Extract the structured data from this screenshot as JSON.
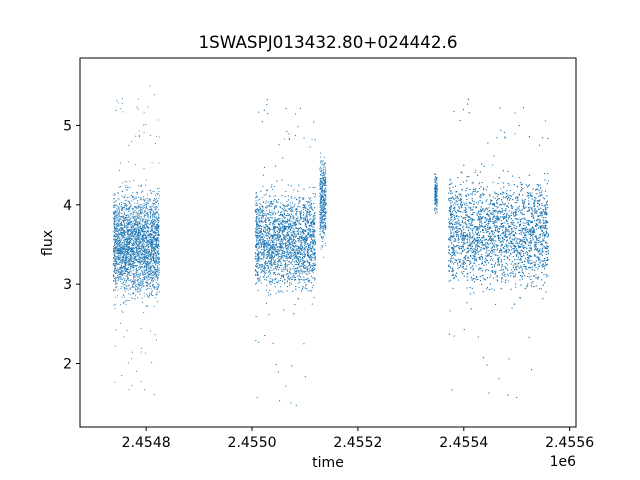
{
  "chart_data": {
    "type": "scatter",
    "title": "1SWASPJ013432.80+024442.6",
    "xlabel": "time",
    "ylabel": "flux",
    "x_offset_label": "1e6",
    "xlim": [
      2454675,
      2455612
    ],
    "ylim": [
      1.2,
      5.85
    ],
    "x_ticks": [
      2454800,
      2455000,
      2455200,
      2455400,
      2455600
    ],
    "x_tick_labels": [
      "2.4548",
      "2.4550",
      "2.4552",
      "2.4554",
      "2.4556"
    ],
    "y_ticks": [
      2,
      3,
      4,
      5
    ],
    "y_tick_labels": [
      "2",
      "3",
      "4",
      "5"
    ],
    "grid": false,
    "marker_color": "#1f77b4",
    "seasons": [
      {
        "x_range": [
          2454738,
          2454825
        ],
        "flux_range": [
          2.6,
          4.4
        ],
        "outlier_range": [
          1.6,
          5.6
        ]
      },
      {
        "x_range": [
          2455006,
          2455120
        ],
        "flux_range": [
          2.7,
          4.4
        ],
        "outlier_range": [
          1.4,
          5.6
        ]
      },
      {
        "x_range": [
          2455128,
          2455140
        ],
        "flux_range": [
          3.3,
          4.8
        ],
        "outlier_range": [
          3.3,
          4.8
        ]
      },
      {
        "x_range": [
          2455345,
          2455350
        ],
        "flux_range": [
          3.8,
          4.5
        ],
        "outlier_range": [
          3.8,
          4.5
        ]
      },
      {
        "x_range": [
          2455371,
          2455560
        ],
        "flux_range": [
          2.7,
          4.6
        ],
        "outlier_range": [
          1.5,
          5.6
        ]
      }
    ]
  }
}
